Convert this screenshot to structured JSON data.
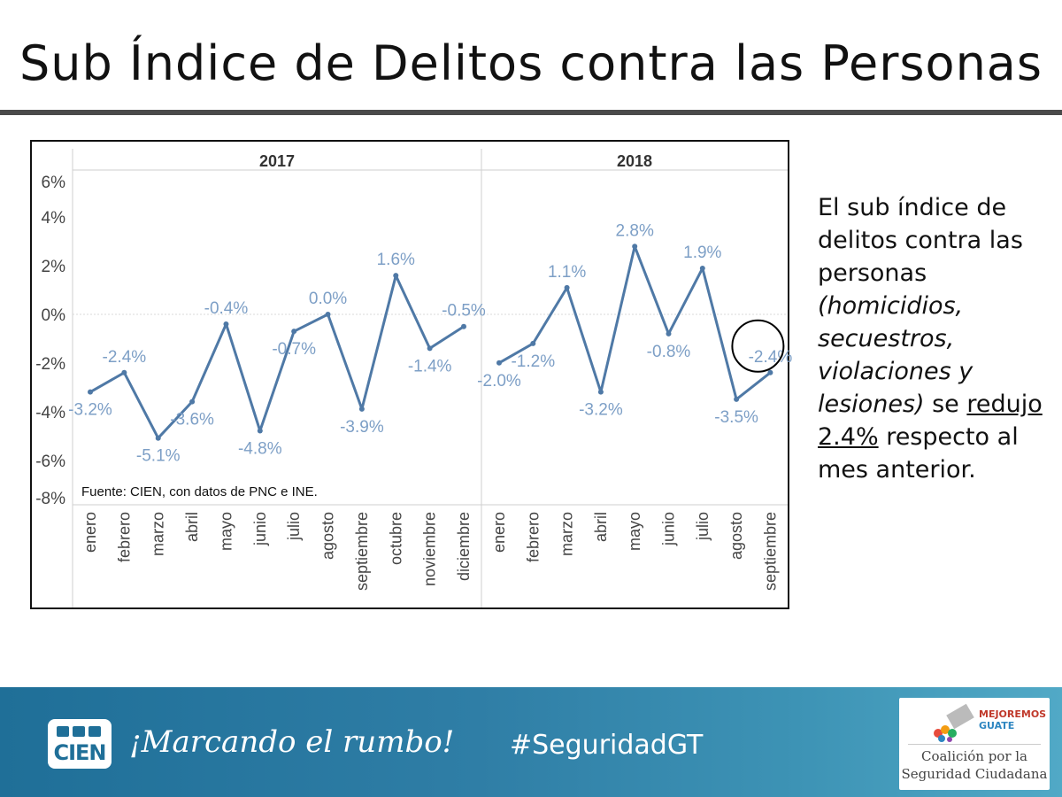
{
  "slide": {
    "title": "Sub Índice de Delitos contra las Personas",
    "side_text": {
      "part1": "El sub índice de delitos contra las personas ",
      "italic": "(homicidios, secuestros, violaciones y lesiones)",
      "part2": " se ",
      "underlined": "redujo 2.4%",
      "part3": " respecto al mes anterior."
    }
  },
  "footer": {
    "logo_text": "CIEN",
    "slogan": "¡Marcando el rumbo!",
    "hashtag": "#SeguridadGT",
    "partner_logo_line1": "MEJOREMOS",
    "partner_logo_line2": "GUATE",
    "partner_name_line1": "Coalición por la",
    "partner_name_line2": "Seguridad Ciudadana"
  },
  "chart_data": {
    "type": "line",
    "source_note": "Fuente: CIEN, con datos de PNC e INE.",
    "y_ticks": [
      "6%",
      "4%",
      "2%",
      "0%",
      "-2%",
      "-4%",
      "-6%",
      "-8%"
    ],
    "ylim": [
      -8,
      6
    ],
    "line_color": "#4f79a6",
    "label_color": "#7d9fc6",
    "panels": [
      {
        "year": "2017",
        "categories": [
          "enero",
          "febrero",
          "marzo",
          "abril",
          "mayo",
          "junio",
          "julio",
          "agosto",
          "septiembre",
          "octubre",
          "noviembre",
          "diciembre"
        ],
        "values": [
          -3.2,
          -2.4,
          -5.1,
          -3.6,
          -0.4,
          -4.8,
          -0.7,
          0.0,
          -3.9,
          1.6,
          -1.4,
          -0.5
        ],
        "labels": [
          "-3.2%",
          "-2.4%",
          "-5.1%",
          "-3.6%",
          "-0.4%",
          "-4.8%",
          "-0.7%",
          "0.0%",
          "-3.9%",
          "1.6%",
          "-1.4%",
          "-0.5%"
        ]
      },
      {
        "year": "2018",
        "categories": [
          "enero",
          "febrero",
          "marzo",
          "abril",
          "mayo",
          "junio",
          "julio",
          "agosto",
          "septiembre"
        ],
        "values": [
          -2.0,
          -1.2,
          1.1,
          -3.2,
          2.8,
          -0.8,
          1.9,
          -3.5,
          -2.4
        ],
        "labels": [
          "-2.0%",
          "-1.2%",
          "1.1%",
          "-3.2%",
          "2.8%",
          "-0.8%",
          "1.9%",
          "-3.5%",
          "-2.4%"
        ],
        "highlight_index": 8
      }
    ]
  }
}
